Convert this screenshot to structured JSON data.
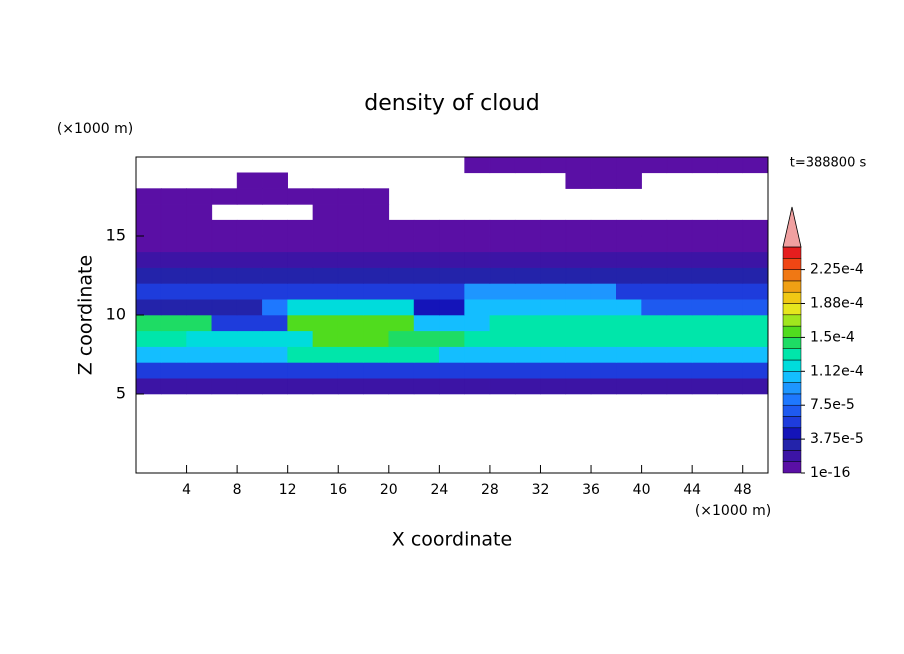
{
  "chart_data": {
    "type": "contour",
    "title": "density of cloud",
    "xlabel": "X coordinate",
    "ylabel": "Z coordinate",
    "x_unit": "(×1000 m)",
    "y_unit": "(×1000 m)",
    "annotation": "t=388800 s",
    "xlim": [
      0,
      50
    ],
    "ylim": [
      0,
      20
    ],
    "xticks": [
      4,
      8,
      12,
      16,
      20,
      24,
      28,
      32,
      36,
      40,
      44,
      48
    ],
    "yticks": [
      5,
      10,
      15
    ],
    "levels": [
      1e-16,
      1.25e-05,
      2.5e-05,
      3.75e-05,
      5e-05,
      6.25e-05,
      7.5e-05,
      8.75e-05,
      0.0001,
      0.0001125,
      0.000125,
      0.0001375,
      0.00015,
      0.0001625,
      0.000175,
      0.0001875,
      0.0002,
      0.0002125,
      0.000225,
      0.0002375,
      0.00025
    ],
    "colors": [
      "#5a0fa5",
      "#3c14a5",
      "#2323aa",
      "#1414b9",
      "#1e3cdc",
      "#1e5af0",
      "#1e78ff",
      "#1e96ff",
      "#14beff",
      "#00dcdc",
      "#00e6aa",
      "#1edc64",
      "#50dc1e",
      "#a0e61e",
      "#e6e61e",
      "#f0c814",
      "#f0a014",
      "#f07814",
      "#f04614",
      "#e61e1e"
    ],
    "extend_color": "#f0a0a0",
    "colorbar_ticks": [
      {
        "value": 1e-16,
        "label": "1e-16"
      },
      {
        "value": 3.75e-05,
        "label": "3.75e-5"
      },
      {
        "value": 7.5e-05,
        "label": "7.5e-5"
      },
      {
        "value": 0.0001125,
        "label": "1.12e-4"
      },
      {
        "value": 0.00015,
        "label": "1.5e-4"
      },
      {
        "value": 0.0001875,
        "label": "1.88e-4"
      },
      {
        "value": 0.000225,
        "label": "2.25e-4"
      }
    ],
    "field": {
      "x": [
        0,
        2,
        4,
        6,
        8,
        10,
        12,
        14,
        16,
        18,
        20,
        22,
        24,
        26,
        28,
        30,
        32,
        34,
        36,
        38,
        40,
        42,
        44,
        46,
        48
      ],
      "z": [
        5,
        6,
        7,
        8,
        9,
        10,
        11,
        12,
        13,
        14,
        15,
        16,
        17,
        18,
        19
      ],
      "values": [
        [
          1.5e-05,
          1.5e-05,
          1.5e-05,
          1.5e-05,
          1.5e-05,
          1.5e-05,
          1.5e-05,
          1.5e-05,
          1.5e-05,
          1.5e-05,
          1.5e-05,
          1.5e-05,
          1.5e-05,
          1.5e-05,
          1.5e-05,
          1.5e-05,
          1.5e-05,
          1.5e-05,
          1.5e-05,
          1.5e-05,
          1.5e-05,
          1.5e-05,
          1.5e-05,
          1.5e-05,
          1.5e-05
        ],
        [
          6e-05,
          6e-05,
          6e-05,
          6e-05,
          6e-05,
          6e-05,
          6e-05,
          6e-05,
          6e-05,
          6e-05,
          6e-05,
          6e-05,
          6e-05,
          6e-05,
          6e-05,
          6e-05,
          6e-05,
          6e-05,
          6e-05,
          6e-05,
          6e-05,
          6e-05,
          6e-05,
          6e-05,
          6e-05
        ],
        [
          0.000105,
          0.000105,
          0.000105,
          0.000105,
          0.000105,
          0.000105,
          0.00013,
          0.00013,
          0.00013,
          0.00013,
          0.00013,
          0.00013,
          0.000105,
          0.000105,
          0.000105,
          0.000105,
          0.000105,
          0.000105,
          0.000105,
          0.000105,
          0.000105,
          0.000105,
          0.000105,
          0.000105,
          0.000105
        ],
        [
          0.000135,
          0.000135,
          0.000115,
          0.000115,
          0.000115,
          0.000115,
          0.000115,
          0.00016,
          0.00016,
          0.00016,
          0.00014,
          0.00014,
          0.00014,
          0.000125,
          0.000125,
          0.000125,
          0.000135,
          0.000135,
          0.000135,
          0.000125,
          0.000125,
          0.000125,
          0.000135,
          0.000135,
          0.000125
        ],
        [
          0.00014,
          0.00014,
          0.00014,
          6e-05,
          6e-05,
          6e-05,
          0.00016,
          0.00016,
          0.00016,
          0.00016,
          0.00016,
          0.0001,
          0.0001,
          0.0001,
          0.00013,
          0.00013,
          0.00013,
          0.00013,
          0.000125,
          0.000125,
          0.000125,
          0.000125,
          0.000125,
          0.000125,
          0.000125
        ],
        [
          3e-05,
          3e-05,
          3e-05,
          3e-05,
          3e-05,
          8e-05,
          0.00012,
          0.00012,
          0.00012,
          0.00012,
          0.00012,
          4e-05,
          4e-05,
          0.000105,
          0.000105,
          0.000105,
          0.000105,
          0.000105,
          0.000105,
          0.000105,
          7e-05,
          7e-05,
          7e-05,
          7e-05,
          7e-05
        ],
        [
          5e-05,
          5e-05,
          5e-05,
          5e-05,
          5e-05,
          5e-05,
          5e-05,
          5e-05,
          5e-05,
          5e-05,
          5e-05,
          5e-05,
          5e-05,
          9e-05,
          9e-05,
          9e-05,
          9e-05,
          9e-05,
          9e-05,
          5e-05,
          5e-05,
          5e-05,
          5e-05,
          5e-05,
          5e-05
        ],
        [
          3e-05,
          3e-05,
          3e-05,
          3e-05,
          3e-05,
          3e-05,
          3e-05,
          3e-05,
          3e-05,
          3e-05,
          3e-05,
          3e-05,
          3e-05,
          3e-05,
          3e-05,
          3e-05,
          3e-05,
          3e-05,
          3e-05,
          3e-05,
          3e-05,
          3e-05,
          3e-05,
          3e-05,
          3e-05
        ],
        [
          2e-05,
          2e-05,
          2e-05,
          2e-05,
          2e-05,
          2e-05,
          2e-05,
          2e-05,
          2e-05,
          2e-05,
          2e-05,
          2e-05,
          2e-05,
          2e-05,
          2e-05,
          2e-05,
          2e-05,
          2e-05,
          2e-05,
          2e-05,
          2e-05,
          2e-05,
          2e-05,
          2e-05,
          2e-05
        ],
        [
          1e-05,
          1e-05,
          1e-05,
          1e-05,
          1e-05,
          1e-05,
          1e-05,
          1e-05,
          1e-05,
          1e-05,
          1e-05,
          1e-05,
          1e-05,
          1e-05,
          1e-05,
          1e-05,
          1e-05,
          1e-05,
          1e-05,
          1e-05,
          1e-05,
          1e-05,
          1e-05,
          1e-05,
          1e-05
        ],
        [
          5e-06,
          5e-06,
          5e-06,
          5e-06,
          5e-06,
          5e-06,
          5e-06,
          5e-06,
          5e-06,
          5e-06,
          5e-06,
          5e-06,
          5e-06,
          5e-06,
          5e-06,
          5e-06,
          5e-06,
          5e-06,
          5e-06,
          5e-06,
          5e-06,
          5e-06,
          5e-06,
          5e-06,
          5e-06
        ],
        [
          5e-06,
          5e-06,
          5e-06,
          null,
          null,
          null,
          null,
          5e-06,
          5e-06,
          5e-06,
          null,
          null,
          null,
          null,
          null,
          null,
          null,
          null,
          null,
          null,
          null,
          null,
          null,
          null,
          null
        ],
        [
          5e-06,
          5e-06,
          5e-06,
          5e-06,
          5e-06,
          5e-06,
          5e-06,
          5e-06,
          5e-06,
          5e-06,
          null,
          null,
          null,
          null,
          null,
          null,
          null,
          null,
          null,
          null,
          null,
          null,
          null,
          null,
          null
        ],
        [
          null,
          null,
          null,
          null,
          5e-06,
          5e-06,
          null,
          null,
          null,
          null,
          null,
          null,
          null,
          null,
          null,
          null,
          null,
          5e-06,
          5e-06,
          5e-06,
          null,
          null,
          null,
          null,
          null
        ],
        [
          null,
          null,
          null,
          null,
          null,
          null,
          null,
          null,
          null,
          null,
          null,
          null,
          null,
          5e-06,
          5e-06,
          5e-06,
          5e-06,
          5e-06,
          5e-06,
          5e-06,
          5e-06,
          5e-06,
          5e-06,
          5e-06,
          5e-06
        ]
      ]
    }
  }
}
